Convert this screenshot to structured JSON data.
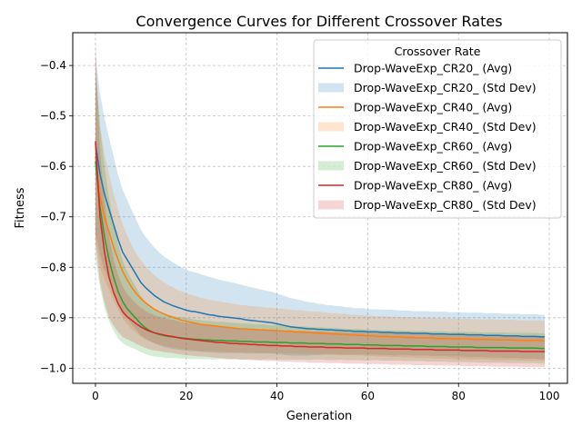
{
  "chart_data": {
    "type": "line",
    "title": "Convergence Curves for Different Crossover Rates",
    "xlabel": "Generation",
    "ylabel": "Fitness",
    "xlim": [
      -5,
      104
    ],
    "ylim": [
      -1.03,
      -0.335
    ],
    "x_ticks": [
      0,
      20,
      40,
      60,
      80,
      100
    ],
    "x_tick_labels": [
      "0",
      "20",
      "40",
      "60",
      "80",
      "100"
    ],
    "y_ticks": [
      -1.0,
      -0.9,
      -0.8,
      -0.7,
      -0.6,
      -0.5,
      -0.4
    ],
    "y_tick_labels": [
      "−1.0",
      "−0.9",
      "−0.8",
      "−0.7",
      "−0.6",
      "−0.5",
      "−0.4"
    ],
    "grid": true,
    "legend": {
      "title": "Crossover Rate",
      "position": "top-right"
    },
    "x": [
      0,
      1,
      2,
      3,
      4,
      5,
      6,
      7,
      8,
      9,
      10,
      11,
      12,
      13,
      14,
      15,
      16,
      17,
      18,
      19,
      20,
      21,
      22,
      23,
      24,
      25,
      26,
      27,
      28,
      29,
      30,
      31,
      32,
      33,
      34,
      35,
      36,
      37,
      38,
      39,
      40,
      41,
      42,
      43,
      44,
      45,
      46,
      47,
      48,
      49,
      50,
      51,
      52,
      53,
      54,
      55,
      56,
      57,
      58,
      59,
      60,
      61,
      62,
      63,
      64,
      65,
      66,
      67,
      68,
      69,
      70,
      71,
      72,
      73,
      74,
      75,
      76,
      77,
      78,
      79,
      80,
      81,
      82,
      83,
      84,
      85,
      86,
      87,
      88,
      89,
      90,
      91,
      92,
      93,
      94,
      95,
      96,
      97,
      98,
      99
    ],
    "series": [
      {
        "name": "Drop-WaveExp_CR20_ (Avg)",
        "std_name": "Drop-WaveExp_CR20_ (Std Dev)",
        "color": "#1f77b4",
        "mean": [
          -0.555,
          -0.615,
          -0.655,
          -0.685,
          -0.715,
          -0.745,
          -0.77,
          -0.785,
          -0.8,
          -0.815,
          -0.83,
          -0.84,
          -0.848,
          -0.856,
          -0.862,
          -0.868,
          -0.872,
          -0.876,
          -0.879,
          -0.882,
          -0.885,
          -0.887,
          -0.888,
          -0.89,
          -0.892,
          -0.894,
          -0.895,
          -0.897,
          -0.898,
          -0.899,
          -0.9,
          -0.901,
          -0.902,
          -0.904,
          -0.905,
          -0.906,
          -0.907,
          -0.908,
          -0.909,
          -0.91,
          -0.912,
          -0.914,
          -0.916,
          -0.918,
          -0.919,
          -0.92,
          -0.921,
          -0.922,
          -0.922,
          -0.923,
          -0.923,
          -0.924,
          -0.924,
          -0.925,
          -0.925,
          -0.926,
          -0.926,
          -0.927,
          -0.927,
          -0.927,
          -0.928,
          -0.928,
          -0.928,
          -0.929,
          -0.929,
          -0.929,
          -0.93,
          -0.93,
          -0.93,
          -0.93,
          -0.931,
          -0.931,
          -0.931,
          -0.931,
          -0.932,
          -0.932,
          -0.932,
          -0.932,
          -0.933,
          -0.933,
          -0.933,
          -0.933,
          -0.934,
          -0.934,
          -0.934,
          -0.934,
          -0.935,
          -0.935,
          -0.935,
          -0.935,
          -0.936,
          -0.936,
          -0.936,
          -0.936,
          -0.937,
          -0.937,
          -0.937,
          -0.937,
          -0.938,
          -0.938
        ],
        "std": [
          0.175,
          0.16,
          0.15,
          0.142,
          0.135,
          0.128,
          0.123,
          0.118,
          0.113,
          0.109,
          0.105,
          0.101,
          0.098,
          0.095,
          0.092,
          0.09,
          0.088,
          0.086,
          0.084,
          0.082,
          0.08,
          0.079,
          0.078,
          0.077,
          0.076,
          0.075,
          0.074,
          0.073,
          0.072,
          0.071,
          0.07,
          0.069,
          0.068,
          0.067,
          0.066,
          0.065,
          0.064,
          0.063,
          0.062,
          0.061,
          0.06,
          0.059,
          0.058,
          0.057,
          0.056,
          0.055,
          0.054,
          0.053,
          0.052,
          0.051,
          0.05,
          0.049,
          0.049,
          0.048,
          0.048,
          0.047,
          0.047,
          0.046,
          0.046,
          0.046,
          0.045,
          0.045,
          0.045,
          0.045,
          0.045,
          0.045,
          0.045,
          0.044,
          0.044,
          0.044,
          0.044,
          0.044,
          0.044,
          0.044,
          0.044,
          0.044,
          0.044,
          0.044,
          0.044,
          0.044,
          0.044,
          0.044,
          0.044,
          0.044,
          0.044,
          0.044,
          0.044,
          0.044,
          0.044,
          0.044,
          0.044,
          0.044,
          0.044,
          0.044,
          0.044,
          0.044,
          0.044,
          0.044,
          0.044,
          0.044
        ]
      },
      {
        "name": "Drop-WaveExp_CR40_ (Avg)",
        "std_name": "Drop-WaveExp_CR40_ (Std Dev)",
        "color": "#ff7f0e",
        "mean": [
          -0.58,
          -0.66,
          -0.7,
          -0.73,
          -0.76,
          -0.785,
          -0.808,
          -0.825,
          -0.84,
          -0.852,
          -0.862,
          -0.87,
          -0.877,
          -0.883,
          -0.888,
          -0.892,
          -0.896,
          -0.899,
          -0.902,
          -0.905,
          -0.907,
          -0.909,
          -0.911,
          -0.913,
          -0.914,
          -0.915,
          -0.916,
          -0.917,
          -0.918,
          -0.919,
          -0.92,
          -0.921,
          -0.922,
          -0.922,
          -0.923,
          -0.923,
          -0.924,
          -0.924,
          -0.925,
          -0.925,
          -0.926,
          -0.926,
          -0.927,
          -0.927,
          -0.928,
          -0.928,
          -0.929,
          -0.929,
          -0.93,
          -0.93,
          -0.931,
          -0.931,
          -0.932,
          -0.932,
          -0.933,
          -0.933,
          -0.934,
          -0.934,
          -0.935,
          -0.935,
          -0.936,
          -0.936,
          -0.937,
          -0.937,
          -0.937,
          -0.938,
          -0.938,
          -0.938,
          -0.939,
          -0.939,
          -0.939,
          -0.94,
          -0.94,
          -0.94,
          -0.94,
          -0.941,
          -0.941,
          -0.941,
          -0.941,
          -0.942,
          -0.942,
          -0.942,
          -0.942,
          -0.943,
          -0.943,
          -0.943,
          -0.943,
          -0.943,
          -0.944,
          -0.944,
          -0.944,
          -0.944,
          -0.944,
          -0.945,
          -0.945,
          -0.945,
          -0.945,
          -0.945,
          -0.945,
          -0.946
        ],
        "std": [
          0.16,
          0.14,
          0.125,
          0.115,
          0.106,
          0.099,
          0.093,
          0.088,
          0.083,
          0.079,
          0.076,
          0.073,
          0.07,
          0.067,
          0.065,
          0.063,
          0.061,
          0.06,
          0.058,
          0.057,
          0.056,
          0.055,
          0.054,
          0.053,
          0.052,
          0.051,
          0.05,
          0.05,
          0.049,
          0.049,
          0.048,
          0.048,
          0.047,
          0.047,
          0.046,
          0.046,
          0.046,
          0.045,
          0.045,
          0.045,
          0.044,
          0.044,
          0.044,
          0.043,
          0.043,
          0.043,
          0.043,
          0.042,
          0.042,
          0.042,
          0.042,
          0.041,
          0.041,
          0.041,
          0.041,
          0.041,
          0.04,
          0.04,
          0.04,
          0.04,
          0.04,
          0.04,
          0.04,
          0.04,
          0.04,
          0.04,
          0.04,
          0.04,
          0.04,
          0.04,
          0.04,
          0.04,
          0.04,
          0.04,
          0.04,
          0.04,
          0.04,
          0.04,
          0.04,
          0.04,
          0.04,
          0.04,
          0.04,
          0.04,
          0.04,
          0.04,
          0.04,
          0.04,
          0.04,
          0.04,
          0.04,
          0.04,
          0.04,
          0.04,
          0.04,
          0.04,
          0.04,
          0.04,
          0.04,
          0.04
        ]
      },
      {
        "name": "Drop-WaveExp_CR60_ (Avg)",
        "std_name": "Drop-WaveExp_CR60_ (Std Dev)",
        "color": "#2ca02c",
        "mean": [
          -0.59,
          -0.68,
          -0.74,
          -0.785,
          -0.82,
          -0.848,
          -0.868,
          -0.882,
          -0.892,
          -0.902,
          -0.912,
          -0.92,
          -0.926,
          -0.93,
          -0.933,
          -0.935,
          -0.937,
          -0.938,
          -0.939,
          -0.94,
          -0.941,
          -0.942,
          -0.943,
          -0.943,
          -0.944,
          -0.944,
          -0.945,
          -0.945,
          -0.945,
          -0.946,
          -0.946,
          -0.946,
          -0.947,
          -0.947,
          -0.947,
          -0.948,
          -0.948,
          -0.948,
          -0.948,
          -0.949,
          -0.949,
          -0.949,
          -0.949,
          -0.95,
          -0.95,
          -0.95,
          -0.95,
          -0.951,
          -0.951,
          -0.951,
          -0.951,
          -0.952,
          -0.952,
          -0.952,
          -0.952,
          -0.953,
          -0.953,
          -0.953,
          -0.953,
          -0.954,
          -0.954,
          -0.954,
          -0.954,
          -0.955,
          -0.955,
          -0.955,
          -0.955,
          -0.955,
          -0.956,
          -0.956,
          -0.956,
          -0.956,
          -0.956,
          -0.957,
          -0.957,
          -0.957,
          -0.957,
          -0.957,
          -0.958,
          -0.958,
          -0.958,
          -0.958,
          -0.958,
          -0.958,
          -0.959,
          -0.959,
          -0.959,
          -0.959,
          -0.959,
          -0.959,
          -0.959,
          -0.96,
          -0.96,
          -0.96,
          -0.96,
          -0.96,
          -0.96,
          -0.96,
          -0.961,
          -0.961
        ],
        "std": [
          0.19,
          0.16,
          0.14,
          0.122,
          0.106,
          0.093,
          0.082,
          0.074,
          0.067,
          0.061,
          0.056,
          0.052,
          0.049,
          0.047,
          0.045,
          0.044,
          0.043,
          0.042,
          0.041,
          0.041,
          0.04,
          0.04,
          0.039,
          0.039,
          0.038,
          0.038,
          0.038,
          0.037,
          0.037,
          0.037,
          0.036,
          0.036,
          0.036,
          0.036,
          0.035,
          0.035,
          0.035,
          0.035,
          0.034,
          0.034,
          0.034,
          0.034,
          0.034,
          0.033,
          0.033,
          0.033,
          0.033,
          0.033,
          0.032,
          0.032,
          0.032,
          0.032,
          0.032,
          0.032,
          0.031,
          0.031,
          0.031,
          0.031,
          0.031,
          0.031,
          0.031,
          0.03,
          0.03,
          0.03,
          0.03,
          0.03,
          0.03,
          0.03,
          0.03,
          0.03,
          0.03,
          0.03,
          0.03,
          0.03,
          0.03,
          0.03,
          0.03,
          0.03,
          0.03,
          0.03,
          0.03,
          0.03,
          0.03,
          0.03,
          0.03,
          0.03,
          0.03,
          0.03,
          0.03,
          0.03,
          0.03,
          0.03,
          0.03,
          0.03,
          0.03,
          0.03,
          0.03,
          0.03,
          0.03,
          0.03
        ]
      },
      {
        "name": "Drop-WaveExp_CR80_ (Avg)",
        "std_name": "Drop-WaveExp_CR80_ (Std Dev)",
        "color": "#d62728",
        "mean": [
          -0.55,
          -0.7,
          -0.77,
          -0.82,
          -0.85,
          -0.872,
          -0.888,
          -0.898,
          -0.905,
          -0.912,
          -0.918,
          -0.923,
          -0.927,
          -0.93,
          -0.932,
          -0.934,
          -0.936,
          -0.937,
          -0.939,
          -0.941,
          -0.942,
          -0.943,
          -0.944,
          -0.945,
          -0.946,
          -0.947,
          -0.948,
          -0.949,
          -0.949,
          -0.95,
          -0.951,
          -0.951,
          -0.952,
          -0.952,
          -0.953,
          -0.953,
          -0.954,
          -0.954,
          -0.955,
          -0.955,
          -0.955,
          -0.956,
          -0.956,
          -0.956,
          -0.957,
          -0.957,
          -0.957,
          -0.958,
          -0.958,
          -0.958,
          -0.958,
          -0.959,
          -0.959,
          -0.959,
          -0.959,
          -0.96,
          -0.96,
          -0.96,
          -0.96,
          -0.96,
          -0.961,
          -0.961,
          -0.961,
          -0.961,
          -0.961,
          -0.962,
          -0.962,
          -0.962,
          -0.962,
          -0.962,
          -0.963,
          -0.963,
          -0.963,
          -0.963,
          -0.963,
          -0.964,
          -0.964,
          -0.964,
          -0.964,
          -0.964,
          -0.964,
          -0.965,
          -0.965,
          -0.965,
          -0.965,
          -0.965,
          -0.965,
          -0.966,
          -0.966,
          -0.966,
          -0.966,
          -0.966,
          -0.966,
          -0.966,
          -0.967,
          -0.967,
          -0.967,
          -0.967,
          -0.967,
          -0.967
        ],
        "std": [
          0.2,
          0.13,
          0.1,
          0.08,
          0.066,
          0.056,
          0.05,
          0.045,
          0.042,
          0.04,
          0.038,
          0.037,
          0.036,
          0.035,
          0.034,
          0.034,
          0.033,
          0.033,
          0.033,
          0.032,
          0.032,
          0.032,
          0.032,
          0.032,
          0.031,
          0.031,
          0.031,
          0.031,
          0.031,
          0.031,
          0.031,
          0.031,
          0.031,
          0.031,
          0.031,
          0.031,
          0.031,
          0.031,
          0.031,
          0.031,
          0.031,
          0.031,
          0.031,
          0.031,
          0.031,
          0.031,
          0.031,
          0.031,
          0.031,
          0.031,
          0.031,
          0.031,
          0.031,
          0.031,
          0.031,
          0.031,
          0.031,
          0.031,
          0.031,
          0.031,
          0.031,
          0.031,
          0.031,
          0.031,
          0.031,
          0.031,
          0.031,
          0.031,
          0.031,
          0.031,
          0.031,
          0.031,
          0.031,
          0.031,
          0.031,
          0.031,
          0.031,
          0.031,
          0.031,
          0.031,
          0.031,
          0.031,
          0.031,
          0.031,
          0.031,
          0.031,
          0.031,
          0.031,
          0.031,
          0.031,
          0.031,
          0.031,
          0.031,
          0.031,
          0.031,
          0.031,
          0.031,
          0.031,
          0.031,
          0.031
        ]
      }
    ]
  }
}
